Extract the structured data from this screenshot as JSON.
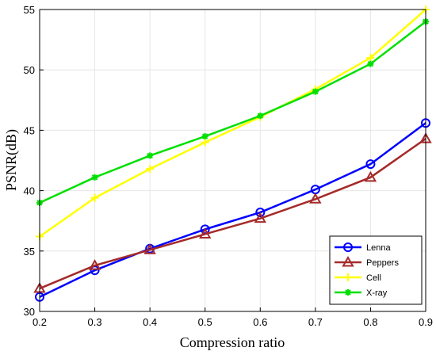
{
  "chart_data": {
    "type": "line",
    "xlabel": "Compression ratio",
    "ylabel": "PSNR(dB)",
    "xlim": [
      0.2,
      0.9
    ],
    "ylim": [
      30,
      55
    ],
    "xticks": [
      "0.2",
      "0.3",
      "0.4",
      "0.5",
      "0.6",
      "0.7",
      "0.8",
      "0.9"
    ],
    "yticks": [
      "30",
      "35",
      "40",
      "45",
      "50",
      "55"
    ],
    "grid": true,
    "legend_position": "bottom-right",
    "x": [
      0.2,
      0.3,
      0.4,
      0.5,
      0.6,
      0.7,
      0.8,
      0.9
    ],
    "series": [
      {
        "name": "Lenna",
        "color": "#0000ff",
        "marker": "circle",
        "values": [
          31.2,
          33.4,
          35.2,
          36.8,
          38.2,
          40.1,
          42.2,
          45.6
        ]
      },
      {
        "name": "Peppers",
        "color": "#a52a2a",
        "marker": "triangle",
        "values": [
          31.9,
          33.8,
          35.1,
          36.4,
          37.7,
          39.3,
          41.1,
          44.3
        ]
      },
      {
        "name": "Cell",
        "color": "#ffff00",
        "marker": "plus",
        "values": [
          36.2,
          39.4,
          41.8,
          44.0,
          46.1,
          48.4,
          51.0,
          55.0
        ]
      },
      {
        "name": "X-ray",
        "color": "#00e000",
        "marker": "star",
        "values": [
          39.0,
          41.1,
          42.9,
          44.5,
          46.2,
          48.2,
          50.5,
          54.0
        ]
      }
    ]
  }
}
